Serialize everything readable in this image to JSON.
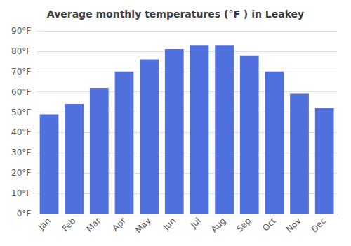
{
  "chart_data": {
    "type": "bar",
    "title": "Average monthly temperatures (°F ) in Leakey",
    "categories": [
      "Jan",
      "Feb",
      "Mar",
      "Apr",
      "May",
      "Jun",
      "Jul",
      "Aug",
      "Sep",
      "Oct",
      "Nov",
      "Dec"
    ],
    "values": [
      49,
      54,
      62,
      70,
      76,
      81,
      83,
      83,
      78,
      70,
      59,
      52
    ],
    "ylim": [
      0,
      90
    ],
    "yticks": [
      {
        "value": 0,
        "label": "0°F"
      },
      {
        "value": 10,
        "label": "10°F"
      },
      {
        "value": 20,
        "label": "20°F"
      },
      {
        "value": 30,
        "label": "30°F"
      },
      {
        "value": 40,
        "label": "40°F"
      },
      {
        "value": 50,
        "label": "50°F"
      },
      {
        "value": 60,
        "label": "60°F"
      },
      {
        "value": 70,
        "label": "70°F"
      },
      {
        "value": 80,
        "label": "80°F"
      },
      {
        "value": 90,
        "label": "90°F"
      }
    ],
    "grid": true
  }
}
